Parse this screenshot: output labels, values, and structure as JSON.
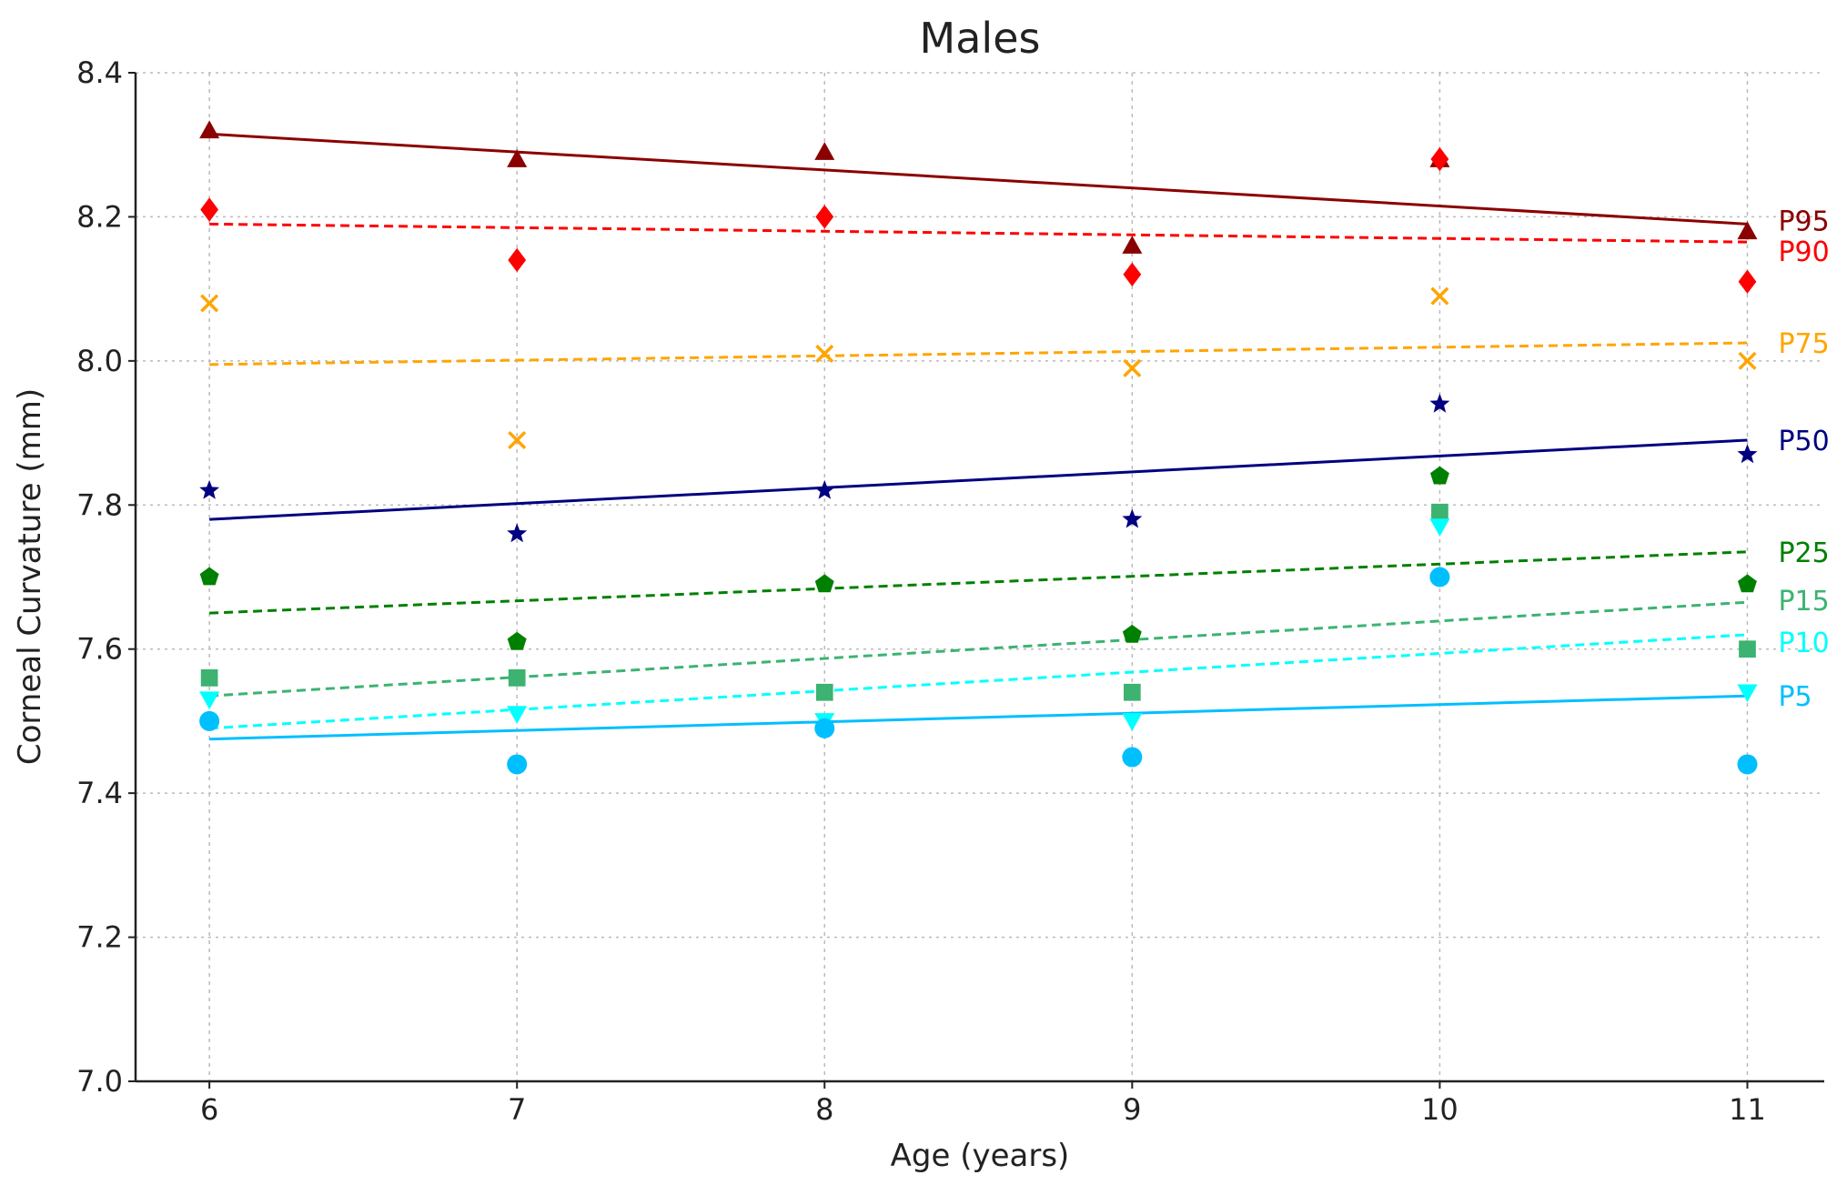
{
  "chart_data": {
    "type": "scatter",
    "title": "Males",
    "xlabel": "Age (years)",
    "ylabel": "Corneal Curvature (mm)",
    "xlim": [
      5.76,
      11.25
    ],
    "ylim": [
      7.0,
      8.4
    ],
    "xticks": [
      6,
      7,
      8,
      9,
      10,
      11
    ],
    "yticks": [
      7.0,
      7.2,
      7.4,
      7.6,
      7.8,
      8.0,
      8.2,
      8.4
    ],
    "grid": true,
    "x": [
      6,
      7,
      8,
      9,
      10,
      11
    ],
    "series": [
      {
        "name": "P95",
        "color": "#8b0000",
        "marker": "triangle-up",
        "line": "solid",
        "values": [
          8.32,
          8.28,
          8.29,
          8.16,
          8.28,
          8.18
        ],
        "fit": [
          8.315,
          8.19
        ]
      },
      {
        "name": "P90",
        "color": "#ff0000",
        "marker": "diamond",
        "line": "dashed",
        "values": [
          8.21,
          8.14,
          8.2,
          8.12,
          8.28,
          8.11
        ],
        "fit": [
          8.19,
          8.165
        ]
      },
      {
        "name": "P75",
        "color": "#ffa500",
        "marker": "x",
        "line": "dashed",
        "values": [
          8.08,
          7.89,
          8.01,
          7.99,
          8.09,
          8.0
        ],
        "fit": [
          7.995,
          8.025
        ]
      },
      {
        "name": "P50",
        "color": "#000080",
        "marker": "star",
        "line": "solid",
        "values": [
          7.82,
          7.76,
          7.82,
          7.78,
          7.94,
          7.87
        ],
        "fit": [
          7.78,
          7.89
        ]
      },
      {
        "name": "P25",
        "color": "#008000",
        "marker": "pentagon",
        "line": "dashed",
        "values": [
          7.7,
          7.61,
          7.69,
          7.62,
          7.84,
          7.69
        ],
        "fit": [
          7.65,
          7.735
        ]
      },
      {
        "name": "P15",
        "color": "#3cb371",
        "marker": "square",
        "line": "dashed",
        "values": [
          7.56,
          7.56,
          7.54,
          7.54,
          7.79,
          7.6
        ],
        "fit": [
          7.535,
          7.665
        ]
      },
      {
        "name": "P10",
        "color": "#00ffff",
        "marker": "triangle-down",
        "line": "dashed",
        "values": [
          7.53,
          7.51,
          7.5,
          7.5,
          7.77,
          7.54
        ],
        "fit": [
          7.49,
          7.62
        ]
      },
      {
        "name": "P5",
        "color": "#00bfff",
        "marker": "circle",
        "line": "solid",
        "values": [
          7.5,
          7.44,
          7.49,
          7.45,
          7.7,
          7.44
        ],
        "fit": [
          7.475,
          7.535
        ]
      }
    ]
  }
}
